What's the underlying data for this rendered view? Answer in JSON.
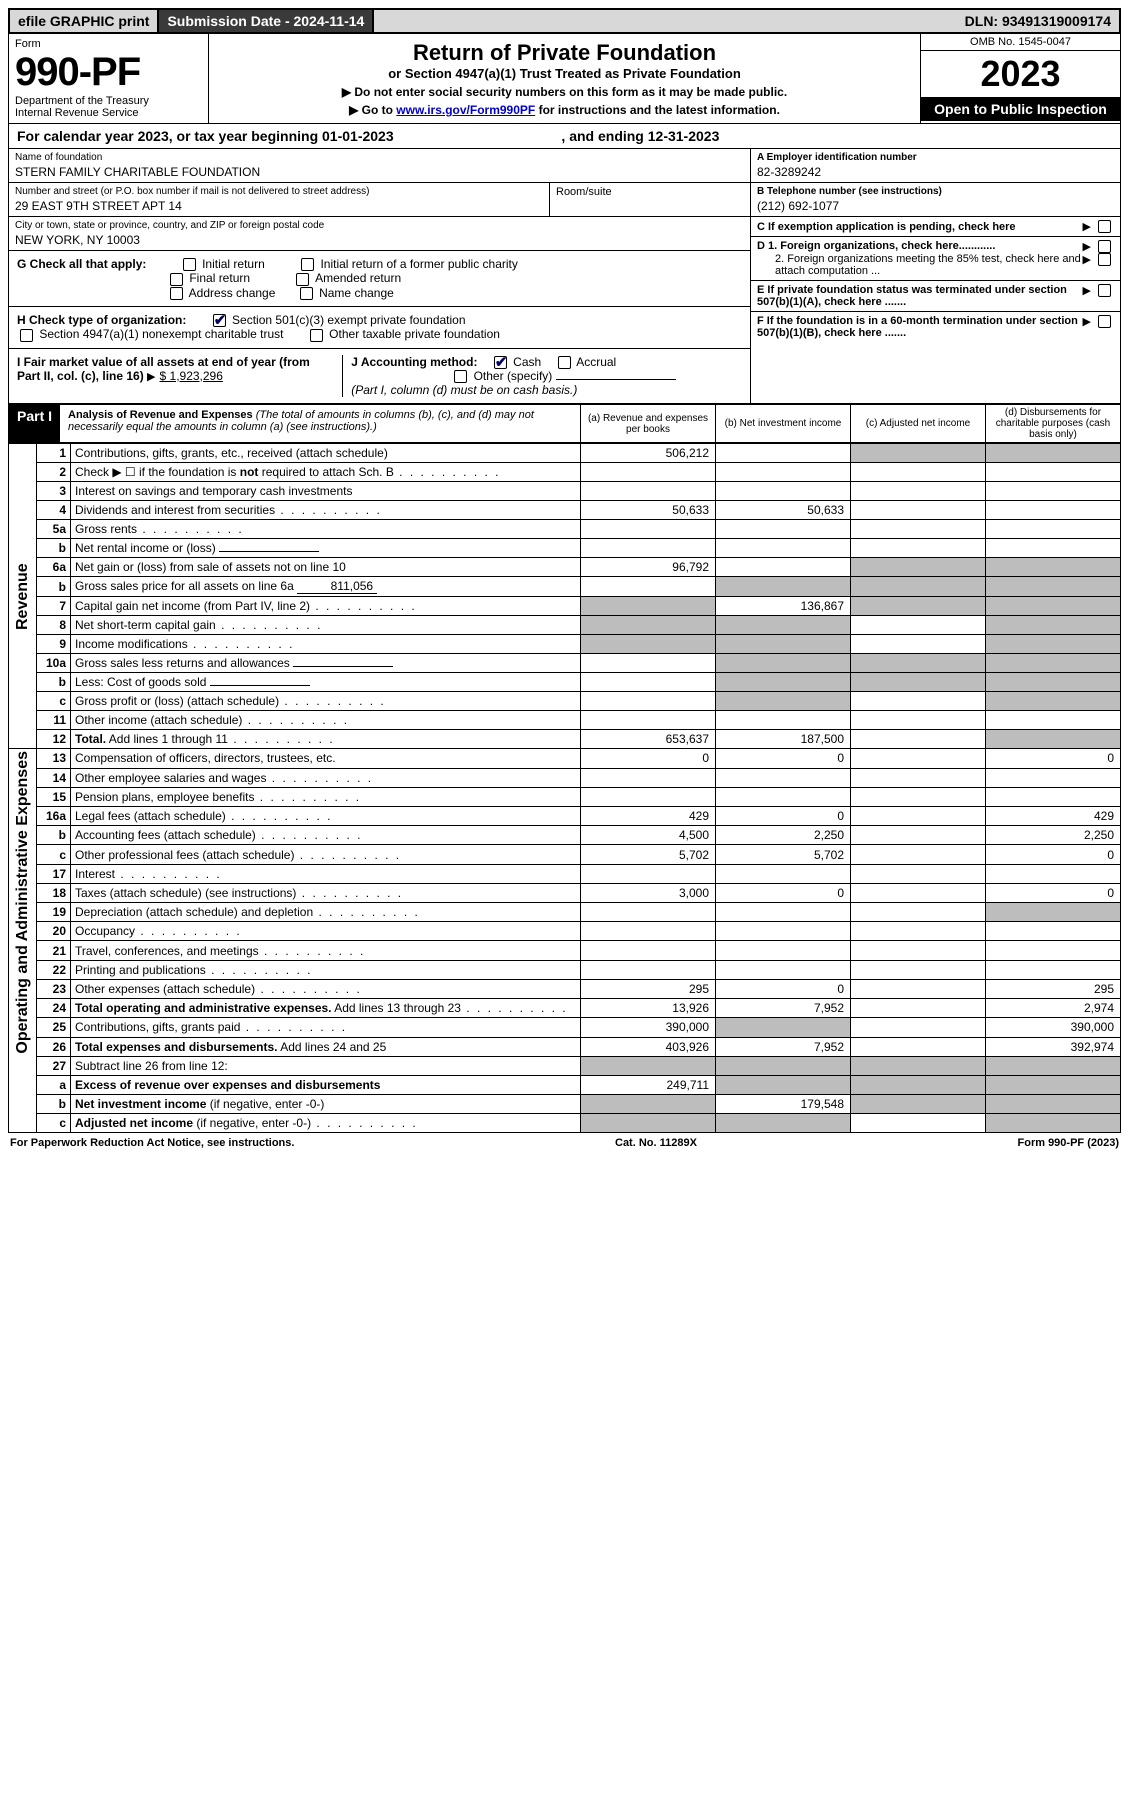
{
  "topbar": {
    "efile": "efile GRAPHIC print",
    "submission": "Submission Date - 2024-11-14",
    "dln": "DLN: 93491319009174"
  },
  "header": {
    "form_label": "Form",
    "form_number": "990-PF",
    "dept": "Department of the Treasury",
    "irs": "Internal Revenue Service",
    "title": "Return of Private Foundation",
    "subtitle": "or Section 4947(a)(1) Trust Treated as Private Foundation",
    "caution1": "▶ Do not enter social security numbers on this form as it may be made public.",
    "caution2_pre": "▶ Go to ",
    "caution2_link": "www.irs.gov/Form990PF",
    "caution2_post": " for instructions and the latest information.",
    "omb": "OMB No. 1545-0047",
    "year": "2023",
    "open": "Open to Public Inspection"
  },
  "calyear": {
    "text_a": "For calendar year 2023, or tax year beginning 01-01-2023",
    "text_b": ", and ending 12-31-2023"
  },
  "info": {
    "name_lbl": "Name of foundation",
    "name": "STERN FAMILY CHARITABLE FOUNDATION",
    "addr_lbl": "Number and street (or P.O. box number if mail is not delivered to street address)",
    "addr": "29 EAST 9TH STREET APT 14",
    "room_lbl": "Room/suite",
    "city_lbl": "City or town, state or province, country, and ZIP or foreign postal code",
    "city": "NEW YORK, NY  10003",
    "a_lbl": "A Employer identification number",
    "a_val": "82-3289242",
    "b_lbl": "B Telephone number (see instructions)",
    "b_val": "(212) 692-1077",
    "c_lbl": "C If exemption application is pending, check here",
    "d1_lbl": "D 1. Foreign organizations, check here............",
    "d2_lbl": "2. Foreign organizations meeting the 85% test, check here and attach computation ...",
    "e_lbl": "E  If private foundation status was terminated under section 507(b)(1)(A), check here .......",
    "f_lbl": "F  If the foundation is in a 60-month termination under section 507(b)(1)(B), check here .......",
    "g_lbl": "G Check all that apply:",
    "g_opts": [
      "Initial return",
      "Final return",
      "Address change",
      "Initial return of a former public charity",
      "Amended return",
      "Name change"
    ],
    "h_lbl": "H Check type of organization:",
    "h_opts": [
      "Section 501(c)(3) exempt private foundation",
      "Section 4947(a)(1) nonexempt charitable trust",
      "Other taxable private foundation"
    ],
    "i_lbl": "I Fair market value of all assets at end of year (from Part II, col. (c), line 16)",
    "i_val": "$  1,923,296",
    "j_lbl": "J Accounting method:",
    "j_opts": [
      "Cash",
      "Accrual",
      "Other (specify)"
    ],
    "j_note": "(Part I, column (d) must be on cash basis.)"
  },
  "part1": {
    "label": "Part I",
    "title": "Analysis of Revenue and Expenses",
    "note": " (The total of amounts in columns (b), (c), and (d) may not necessarily equal the amounts in column (a) (see instructions).)",
    "col_a": "(a)   Revenue and expenses per books",
    "col_b": "(b)   Net investment income",
    "col_c": "(c)   Adjusted net income",
    "col_d": "(d)  Disbursements for charitable purposes (cash basis only)"
  },
  "sides": {
    "rev": "Revenue",
    "exp": "Operating and Administrative Expenses"
  },
  "rows": [
    {
      "sec": "rev",
      "n": "1",
      "d": "Contributions, gifts, grants, etc., received (attach schedule)",
      "a": "506,212",
      "b": "",
      "c": "g",
      "dd": "g"
    },
    {
      "sec": "rev",
      "n": "2",
      "d": "Check ▶ ☐ if the foundation is <b>not</b> required to attach Sch. B",
      "dots": 1
    },
    {
      "sec": "rev",
      "n": "3",
      "d": "Interest on savings and temporary cash investments"
    },
    {
      "sec": "rev",
      "n": "4",
      "d": "Dividends and interest from securities",
      "dots": 1,
      "a": "50,633",
      "b": "50,633"
    },
    {
      "sec": "rev",
      "n": "5a",
      "d": "Gross rents",
      "dots": 1
    },
    {
      "sec": "rev",
      "n": "b",
      "d": "Net rental income or (loss)",
      "half": 1
    },
    {
      "sec": "rev",
      "n": "6a",
      "d": "Net gain or (loss) from sale of assets not on line 10",
      "a": "96,792",
      "c": "g",
      "dd": "g"
    },
    {
      "sec": "rev",
      "n": "b",
      "d": "Gross sales price for all assets on line 6a",
      "inline": "811,056",
      "b": "g",
      "c": "g",
      "dd": "g"
    },
    {
      "sec": "rev",
      "n": "7",
      "d": "Capital gain net income (from Part IV, line 2)",
      "dots": 1,
      "a": "g",
      "b": "136,867",
      "c": "g",
      "dd": "g"
    },
    {
      "sec": "rev",
      "n": "8",
      "d": "Net short-term capital gain",
      "dots": 1,
      "a": "g",
      "b": "g",
      "dd": "g"
    },
    {
      "sec": "rev",
      "n": "9",
      "d": "Income modifications",
      "dots": 1,
      "a": "g",
      "b": "g",
      "dd": "g"
    },
    {
      "sec": "rev",
      "n": "10a",
      "d": "Gross sales less returns and allowances",
      "half": 1,
      "b": "g",
      "c": "g",
      "dd": "g"
    },
    {
      "sec": "rev",
      "n": "b",
      "d": "Less: Cost of goods sold",
      "dots": 1,
      "half": 1,
      "b": "g",
      "c": "g",
      "dd": "g"
    },
    {
      "sec": "rev",
      "n": "c",
      "d": "Gross profit or (loss) (attach schedule)",
      "dots": 1,
      "b": "g",
      "dd": "g"
    },
    {
      "sec": "rev",
      "n": "11",
      "d": "Other income (attach schedule)",
      "dots": 1
    },
    {
      "sec": "rev",
      "n": "12",
      "d": "<b>Total.</b> Add lines 1 through 11",
      "dots": 1,
      "a": "653,637",
      "b": "187,500",
      "dd": "g"
    },
    {
      "sec": "exp",
      "n": "13",
      "d": "Compensation of officers, directors, trustees, etc.",
      "a": "0",
      "b": "0",
      "dd": "0"
    },
    {
      "sec": "exp",
      "n": "14",
      "d": "Other employee salaries and wages",
      "dots": 1
    },
    {
      "sec": "exp",
      "n": "15",
      "d": "Pension plans, employee benefits",
      "dots": 1
    },
    {
      "sec": "exp",
      "n": "16a",
      "d": "Legal fees (attach schedule)",
      "dots": 1,
      "a": "429",
      "b": "0",
      "dd": "429"
    },
    {
      "sec": "exp",
      "n": "b",
      "d": "Accounting fees (attach schedule)",
      "dots": 1,
      "a": "4,500",
      "b": "2,250",
      "dd": "2,250"
    },
    {
      "sec": "exp",
      "n": "c",
      "d": "Other professional fees (attach schedule)",
      "dots": 1,
      "a": "5,702",
      "b": "5,702",
      "dd": "0"
    },
    {
      "sec": "exp",
      "n": "17",
      "d": "Interest",
      "dots": 1
    },
    {
      "sec": "exp",
      "n": "18",
      "d": "Taxes (attach schedule) (see instructions)",
      "dots": 1,
      "a": "3,000",
      "b": "0",
      "dd": "0"
    },
    {
      "sec": "exp",
      "n": "19",
      "d": "Depreciation (attach schedule) and depletion",
      "dots": 1,
      "dd": "g"
    },
    {
      "sec": "exp",
      "n": "20",
      "d": "Occupancy",
      "dots": 1
    },
    {
      "sec": "exp",
      "n": "21",
      "d": "Travel, conferences, and meetings",
      "dots": 1
    },
    {
      "sec": "exp",
      "n": "22",
      "d": "Printing and publications",
      "dots": 1
    },
    {
      "sec": "exp",
      "n": "23",
      "d": "Other expenses (attach schedule)",
      "dots": 1,
      "a": "295",
      "b": "0",
      "dd": "295"
    },
    {
      "sec": "exp",
      "n": "24",
      "d": "<b>Total operating and administrative expenses.</b> Add lines 13 through 23",
      "dots": 1,
      "a": "13,926",
      "b": "7,952",
      "dd": "2,974"
    },
    {
      "sec": "exp",
      "n": "25",
      "d": "Contributions, gifts, grants paid",
      "dots": 1,
      "a": "390,000",
      "b": "g",
      "dd": "390,000"
    },
    {
      "sec": "exp",
      "n": "26",
      "d": "<b>Total expenses and disbursements.</b> Add lines 24 and 25",
      "a": "403,926",
      "b": "7,952",
      "dd": "392,974"
    },
    {
      "sec": "end",
      "n": "27",
      "d": "Subtract line 26 from line 12:",
      "a": "g",
      "b": "g",
      "c": "g",
      "dd": "g"
    },
    {
      "sec": "end",
      "n": "a",
      "d": "<b>Excess of revenue over expenses and disbursements</b>",
      "a": "249,711",
      "b": "g",
      "c": "g",
      "dd": "g"
    },
    {
      "sec": "end",
      "n": "b",
      "d": "<b>Net investment income</b> (if negative, enter -0-)",
      "a": "g",
      "b": "179,548",
      "c": "g",
      "dd": "g"
    },
    {
      "sec": "end",
      "n": "c",
      "d": "<b>Adjusted net income</b> (if negative, enter -0-)",
      "dots": 1,
      "a": "g",
      "b": "g",
      "dd": "g"
    }
  ],
  "footer": {
    "pra": "For Paperwork Reduction Act Notice, see instructions.",
    "cat": "Cat. No. 11289X",
    "form": "Form 990-PF (2023)"
  }
}
